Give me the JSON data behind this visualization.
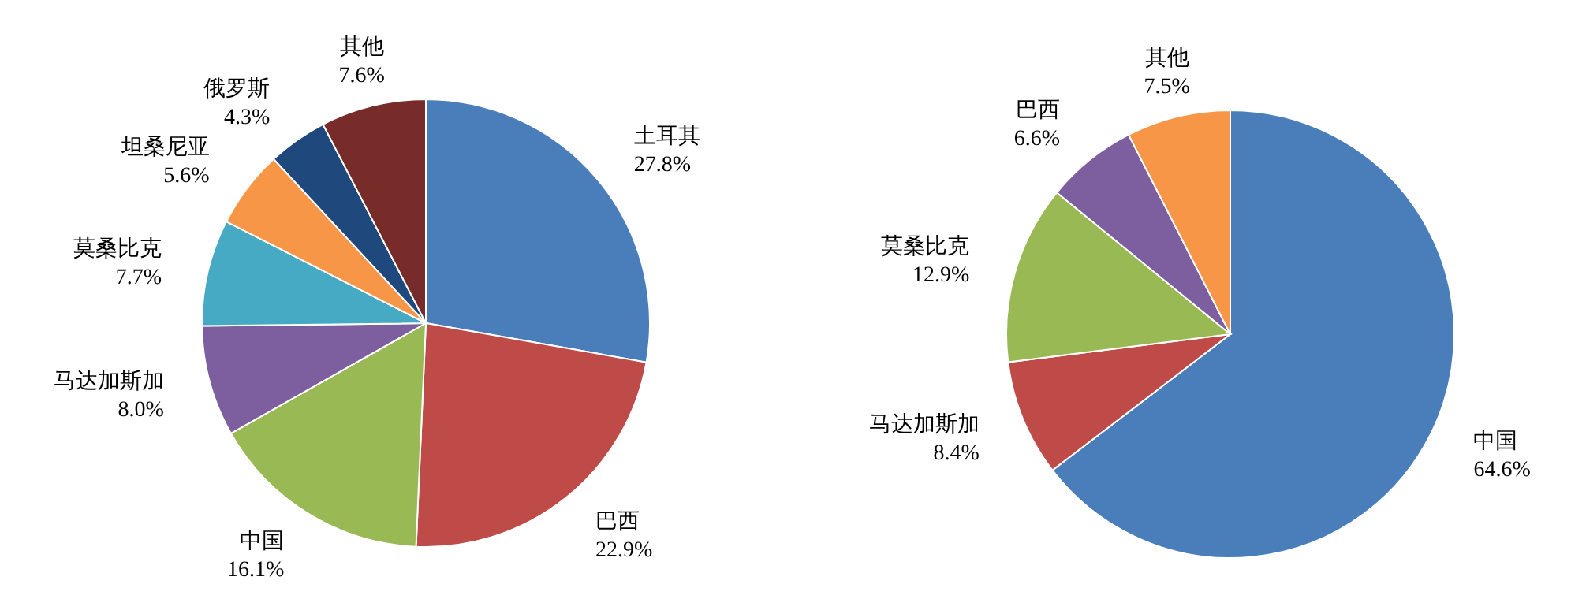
{
  "chart_data": [
    {
      "type": "pie",
      "categories": [
        "土耳其",
        "巴西",
        "中国",
        "马达加斯加",
        "莫桑比克",
        "坦桑尼亚",
        "俄罗斯",
        "其他"
      ],
      "values": [
        27.8,
        22.9,
        16.1,
        8.0,
        7.7,
        5.6,
        4.3,
        7.6
      ],
      "value_labels": [
        "27.8%",
        "22.9%",
        "16.1%",
        "8.0%",
        "7.7%",
        "5.6%",
        "4.3%",
        "7.6%"
      ],
      "colors": [
        "#4a7ebb",
        "#be4b48",
        "#98b954",
        "#7d5fa0",
        "#46aac5",
        "#f79646",
        "#1f497d",
        "#772c2a"
      ]
    },
    {
      "type": "pie",
      "categories": [
        "中国",
        "马达加斯加",
        "莫桑比克",
        "巴西",
        "其他"
      ],
      "values": [
        64.6,
        8.4,
        12.9,
        6.6,
        7.5
      ],
      "value_labels": [
        "64.6%",
        "8.4%",
        "12.9%",
        "6.6%",
        "7.5%"
      ],
      "colors": [
        "#4a7ebb",
        "#be4b48",
        "#98b954",
        "#7d5fa0",
        "#f79646"
      ]
    }
  ]
}
